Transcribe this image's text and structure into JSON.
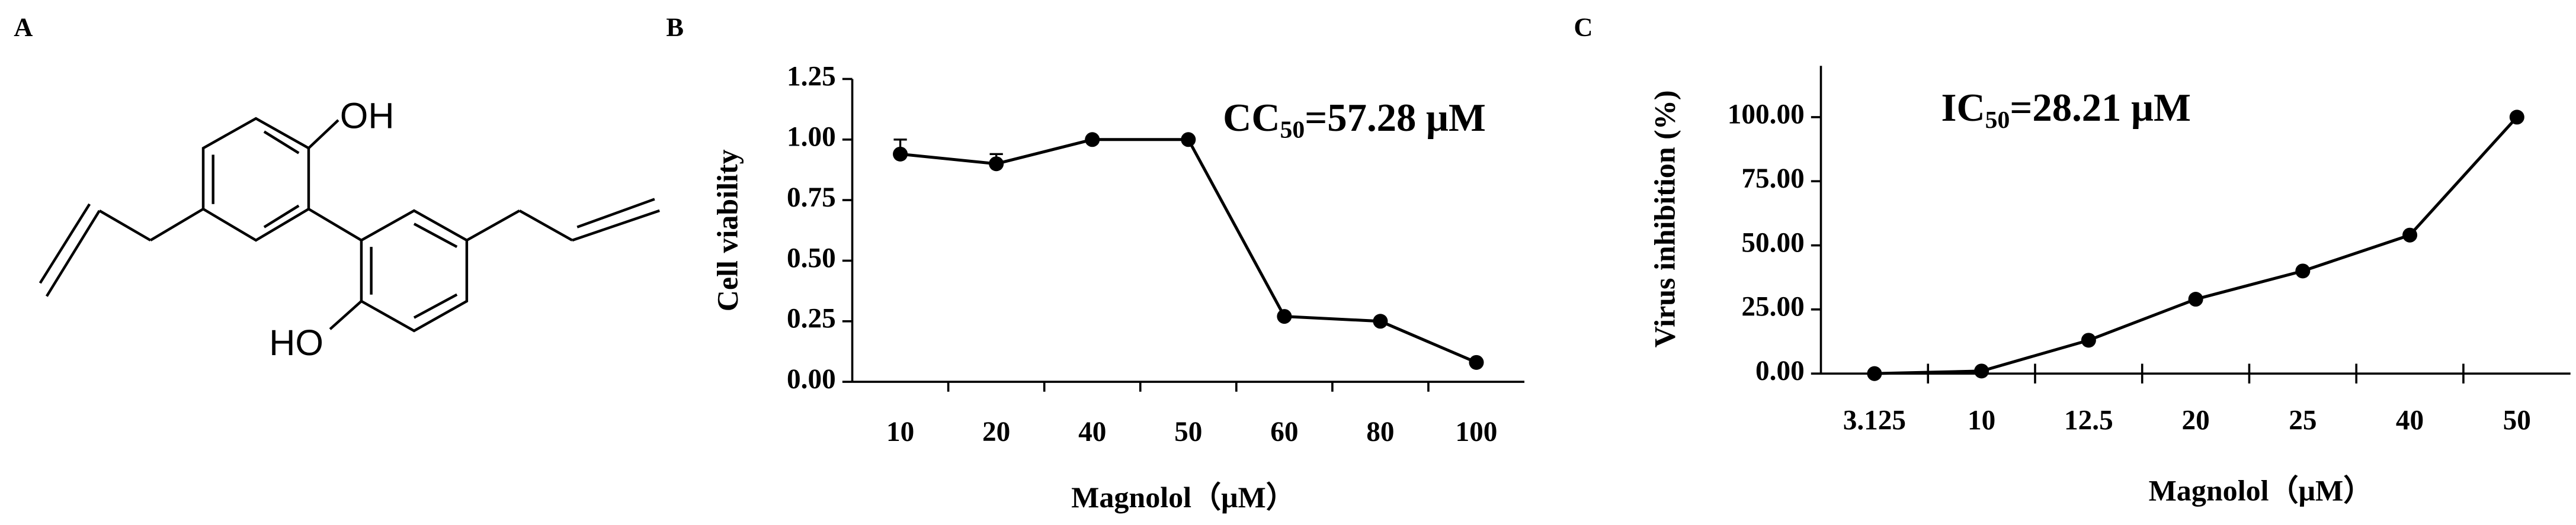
{
  "structure": {
    "label": "A",
    "oh": "OH",
    "ho": "HO"
  },
  "chart_data": [
    {
      "type": "line",
      "panel_label": "B",
      "y_label": "Cell viability",
      "x_label": "Magnolol（μM）",
      "annotation": {
        "text": "CC",
        "subscript": "50",
        "rest": "=57.28 μM"
      },
      "categories": [
        "10",
        "20",
        "40",
        "50",
        "60",
        "80",
        "100"
      ],
      "values": [
        0.94,
        0.9,
        1.0,
        1.0,
        0.27,
        0.25,
        0.08
      ],
      "errors": [
        0.06,
        0.04,
        null,
        null,
        null,
        null,
        null
      ],
      "color": "#000000",
      "ylim": [
        0,
        1.25
      ],
      "yticks": [
        {
          "value": 0,
          "label": "0.00"
        },
        {
          "value": 0.25,
          "label": "0.25"
        },
        {
          "value": 0.5,
          "label": "0.50"
        },
        {
          "value": 0.75,
          "label": "0.75"
        },
        {
          "value": 1,
          "label": "1.00"
        },
        {
          "value": 1.25,
          "label": "1.25"
        }
      ]
    },
    {
      "type": "line",
      "panel_label": "C",
      "y_label": "Virus inhibition (%)",
      "x_label": "Magnolol（μM）",
      "annotation": {
        "text": "IC",
        "subscript": "50",
        "rest": "=28.21 μM"
      },
      "categories": [
        "3.125",
        "10",
        "12.5",
        "20",
        "25",
        "40",
        "50"
      ],
      "values": [
        0,
        1,
        13,
        29,
        40,
        54,
        100
      ],
      "color": "#000000",
      "ylim": [
        0,
        120
      ],
      "yticks": [
        {
          "value": 0,
          "label": "0.00"
        },
        {
          "value": 25,
          "label": "25.00"
        },
        {
          "value": 50,
          "label": "50.00"
        },
        {
          "value": 75,
          "label": "75.00"
        },
        {
          "value": 100,
          "label": "100.00"
        }
      ]
    }
  ]
}
